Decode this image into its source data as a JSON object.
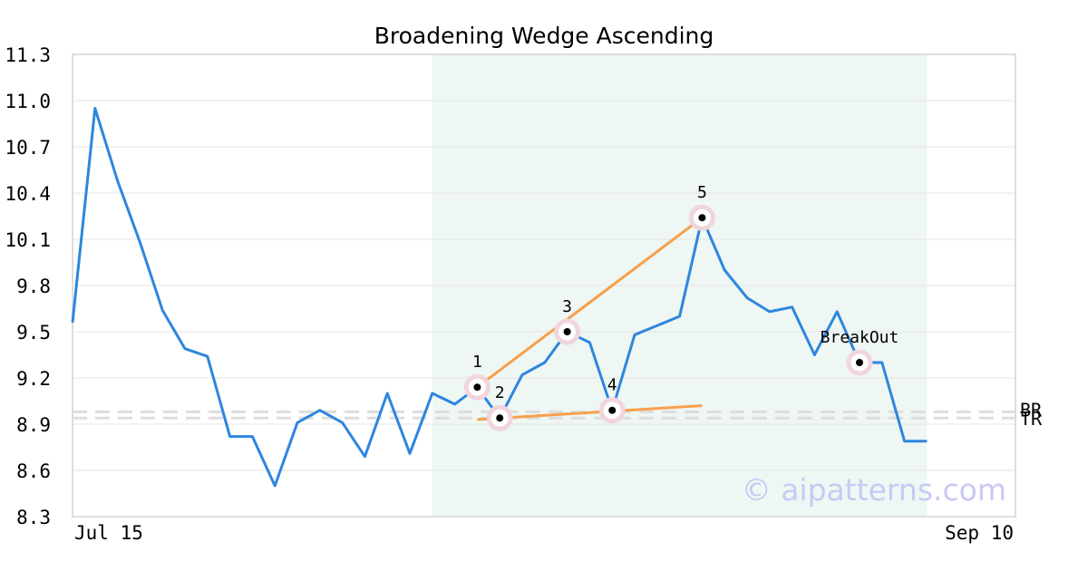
{
  "chart_data": {
    "type": "line",
    "title": "Broadening Wedge Ascending",
    "ylim": [
      8.3,
      11.3
    ],
    "y_ticks": [
      "11.3",
      "11.0",
      "10.7",
      "10.4",
      "10.1",
      "9.8",
      "9.5",
      "9.2",
      "8.9",
      "8.6",
      "8.3"
    ],
    "x_tick_labels": [
      "Jul 15",
      "Sep 10"
    ],
    "grid": true,
    "watermark": "© aipatterns.com",
    "colors": {
      "price": "#2e86de",
      "trendline": "#f7a04a",
      "highlight": "#eef7f3",
      "marker_ring": "#f0d6dc",
      "reference_line": "#dddddd",
      "frame": "#dddddd"
    },
    "series": [
      {
        "values": [
          9.56,
          10.95,
          10.48,
          10.08,
          9.64,
          9.39,
          9.34,
          8.82,
          8.82,
          8.5,
          8.91,
          8.99,
          8.91,
          8.69,
          9.1,
          8.71,
          9.1,
          9.03,
          9.14,
          8.94,
          9.22,
          9.3,
          9.5,
          9.43,
          8.99,
          9.48,
          9.54,
          9.6,
          10.24,
          9.9,
          9.72,
          9.63,
          9.66,
          9.35,
          9.63,
          9.3,
          9.3,
          8.79,
          8.79
        ]
      }
    ],
    "highlight_range": {
      "start_index": 16,
      "end_index": 38
    },
    "pattern_points": [
      {
        "label": "1",
        "index": 18,
        "value": 9.14
      },
      {
        "label": "2",
        "index": 19,
        "value": 8.94
      },
      {
        "label": "3",
        "index": 22,
        "value": 9.5
      },
      {
        "label": "4",
        "index": 24,
        "value": 8.99
      },
      {
        "label": "5",
        "index": 28,
        "value": 10.24
      },
      {
        "label": "BreakOut",
        "index": 35,
        "value": 9.3
      }
    ],
    "trendlines": [
      {
        "from": {
          "index": 18,
          "value": 9.14
        },
        "to": {
          "index": 28,
          "value": 10.24
        }
      },
      {
        "from": {
          "index": 18,
          "value": 8.93
        },
        "to": {
          "index": 28,
          "value": 9.02
        }
      }
    ],
    "reference_lines": [
      {
        "label": "BR",
        "value": 8.98
      },
      {
        "label": "TR",
        "value": 8.94
      }
    ]
  }
}
